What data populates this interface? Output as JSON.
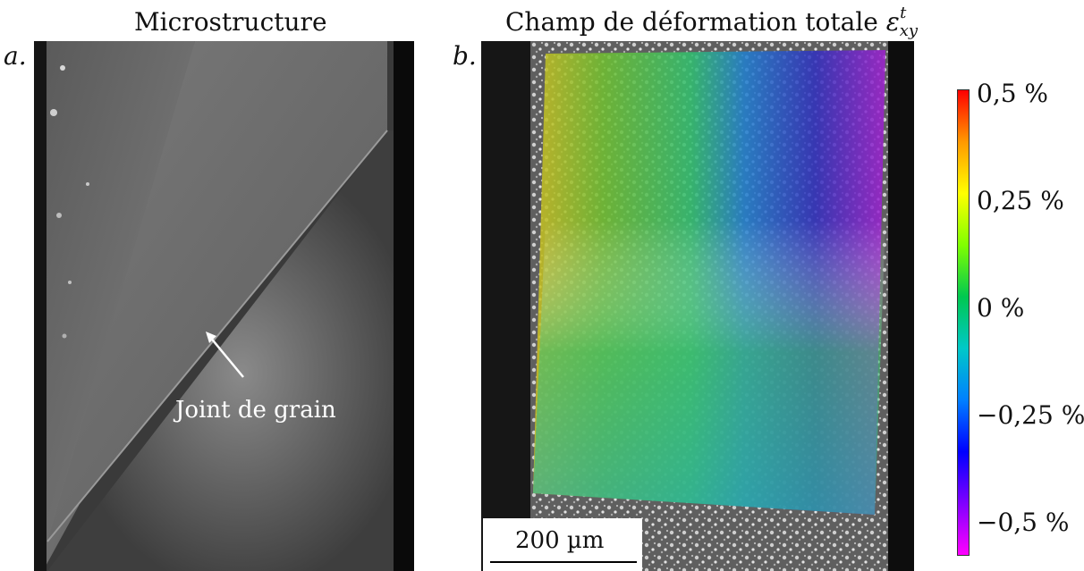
{
  "panels": {
    "a": {
      "label": "a.",
      "title": "Microstructure",
      "annotation": "Joint de grain"
    },
    "b": {
      "label": "b.",
      "title_prefix": "Champ de déformation totale ",
      "title_symbol": "ε",
      "title_sub": "xy",
      "title_sup": "t",
      "scalebar": "200 µm"
    }
  },
  "colorbar": {
    "ticks": [
      "0,5 %",
      "0,25 %",
      "0 %",
      "−0,25 %",
      "−0,5 %"
    ],
    "colors": [
      "#ff0000",
      "#ff9900",
      "#ffff00",
      "#80ff00",
      "#00c850",
      "#00c8c8",
      "#0080ff",
      "#0000ff",
      "#8000ff",
      "#ff00ff"
    ]
  }
}
